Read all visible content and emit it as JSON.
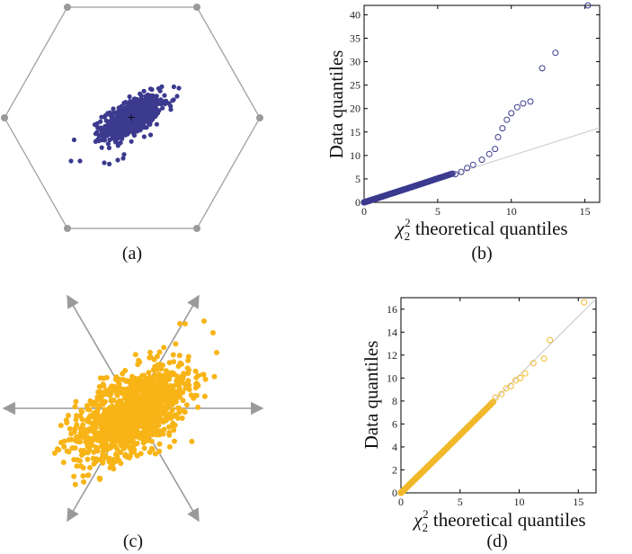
{
  "colors": {
    "purple": "#3b3a8f",
    "orange": "#f8b416",
    "gray": "#9a9a9a",
    "refline": "#c8c8c8"
  },
  "captions": {
    "a": "(a)",
    "b": "(b)",
    "c": "(c)",
    "d": "(d)"
  },
  "chart_data": [
    {
      "panel": "a",
      "type": "scatter",
      "description_visible": "hexagon with gray vertex dots; dense purple cluster with '+' at center",
      "center_mark": "+",
      "points": "many points, correlated cloud tilted up-right",
      "hexagon": true
    },
    {
      "panel": "b",
      "type": "scatter",
      "xlabel_prefix": "χ",
      "xlabel_sub": "2",
      "xlabel_sup": "2",
      "xlabel_rest": " theoretical quantiles",
      "ylabel": "Data quantiles",
      "xlim": [
        0,
        16
      ],
      "ylim": [
        0,
        42
      ],
      "xticks": [
        0,
        5,
        10,
        15
      ],
      "yticks": [
        0,
        5,
        10,
        15,
        20,
        25,
        30,
        35,
        40
      ],
      "reference_line": [
        [
          0,
          0
        ],
        [
          16,
          15.9
        ]
      ],
      "tail_points": [
        [
          6.2,
          6.0
        ],
        [
          6.6,
          6.5
        ],
        [
          7.0,
          7.3
        ],
        [
          7.4,
          8.0
        ],
        [
          8.0,
          9.1
        ],
        [
          8.5,
          10.3
        ],
        [
          8.9,
          11.4
        ],
        [
          9.1,
          13.9
        ],
        [
          9.4,
          15.8
        ],
        [
          9.7,
          17.6
        ],
        [
          10.0,
          19.0
        ],
        [
          10.4,
          20.3
        ],
        [
          10.8,
          21.1
        ],
        [
          11.3,
          21.5
        ],
        [
          12.1,
          28.6
        ],
        [
          13.0,
          31.9
        ],
        [
          15.2,
          42.0
        ]
      ]
    },
    {
      "panel": "c",
      "type": "scatter",
      "description_visible": "six gray arrows from center; orange correlated point cloud",
      "arrows": 6,
      "points": "many points, correlated cloud tilted up-right"
    },
    {
      "panel": "d",
      "type": "scatter",
      "xlabel_prefix": "χ",
      "xlabel_sub": "2",
      "xlabel_sup": "2",
      "xlabel_rest": " theoretical quantiles",
      "ylabel": "Data quantiles",
      "xlim": [
        0,
        16.5
      ],
      "ylim": [
        0,
        17
      ],
      "xticks": [
        0,
        5,
        10,
        15
      ],
      "yticks": [
        0,
        2,
        4,
        6,
        8,
        10,
        12,
        14,
        16
      ],
      "reference_line": [
        [
          0,
          0
        ],
        [
          16.5,
          16.9
        ]
      ],
      "tail_points": [
        [
          8.0,
          8.3
        ],
        [
          8.5,
          8.6
        ],
        [
          8.9,
          9.1
        ],
        [
          9.3,
          9.3
        ],
        [
          9.7,
          9.8
        ],
        [
          10.1,
          10.0
        ],
        [
          10.5,
          10.4
        ],
        [
          11.2,
          11.3
        ],
        [
          12.1,
          11.7
        ],
        [
          12.6,
          13.3
        ],
        [
          15.5,
          16.6
        ]
      ]
    }
  ]
}
